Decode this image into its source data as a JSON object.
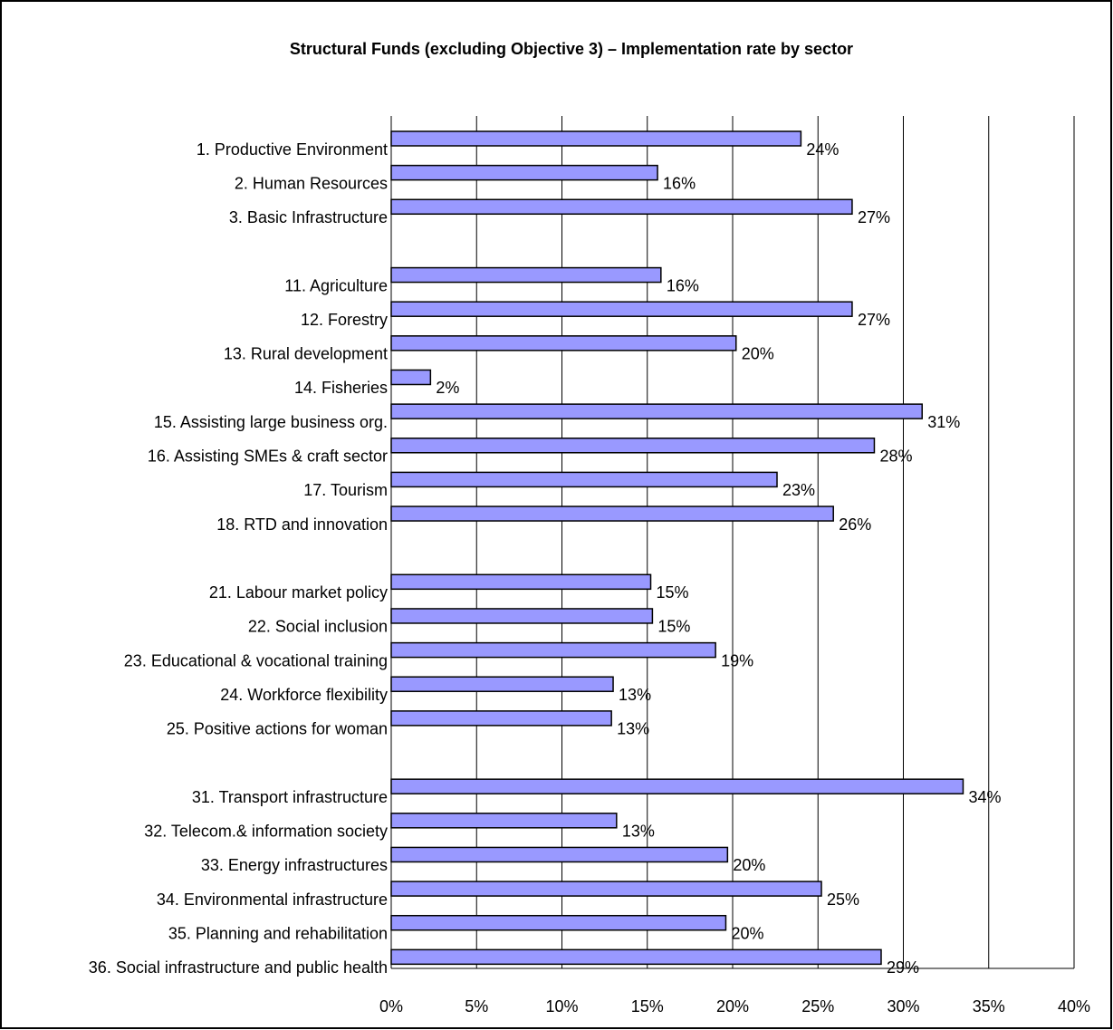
{
  "chart_data": {
    "type": "bar",
    "orientation": "horizontal",
    "title": "Structural Funds (excluding Objective 3) – Implementation rate by sector",
    "categories": [
      "1. Productive Environment",
      "2. Human Resources",
      "3. Basic Infrastructure",
      null,
      "11. Agriculture",
      "12. Forestry",
      "13. Rural development",
      "14. Fisheries",
      "15. Assisting large business org.",
      "16. Assisting SMEs & craft sector",
      "17. Tourism",
      "18. RTD and innovation",
      null,
      "21. Labour market policy",
      "22. Social inclusion",
      "23. Educational & vocational training",
      "24. Workforce flexibility",
      "25. Positive actions for woman",
      null,
      "31. Transport infrastructure",
      "32. Telecom.& information society",
      "33. Energy infrastructures",
      "34. Environmental infrastructure",
      "35. Planning and rehabilitation",
      "36. Social infrastructure and public health"
    ],
    "values": [
      24.0,
      15.6,
      27.0,
      null,
      15.8,
      27.0,
      20.2,
      2.3,
      31.1,
      28.3,
      22.6,
      25.9,
      null,
      15.2,
      15.3,
      19.0,
      13.0,
      12.9,
      null,
      33.5,
      13.2,
      19.7,
      25.2,
      19.6,
      28.7
    ],
    "value_labels": [
      "24%",
      "16%",
      "27%",
      null,
      "16%",
      "27%",
      "20%",
      "2%",
      "31%",
      "28%",
      "23%",
      "26%",
      null,
      "15%",
      "15%",
      "19%",
      "13%",
      "13%",
      null,
      "34%",
      "13%",
      "20%",
      "25%",
      "20%",
      "29%"
    ],
    "color": "#9999ff",
    "xlim": [
      0,
      40
    ],
    "xticks": [
      {
        "value": 0,
        "label": "0%"
      },
      {
        "value": 5,
        "label": "5%"
      },
      {
        "value": 10,
        "label": "10%"
      },
      {
        "value": 15,
        "label": "15%"
      },
      {
        "value": 20,
        "label": "20%"
      },
      {
        "value": 25,
        "label": "25%"
      },
      {
        "value": 30,
        "label": "30%"
      },
      {
        "value": 35,
        "label": "35%"
      },
      {
        "value": 40,
        "label": "40%"
      }
    ],
    "grid": true
  }
}
